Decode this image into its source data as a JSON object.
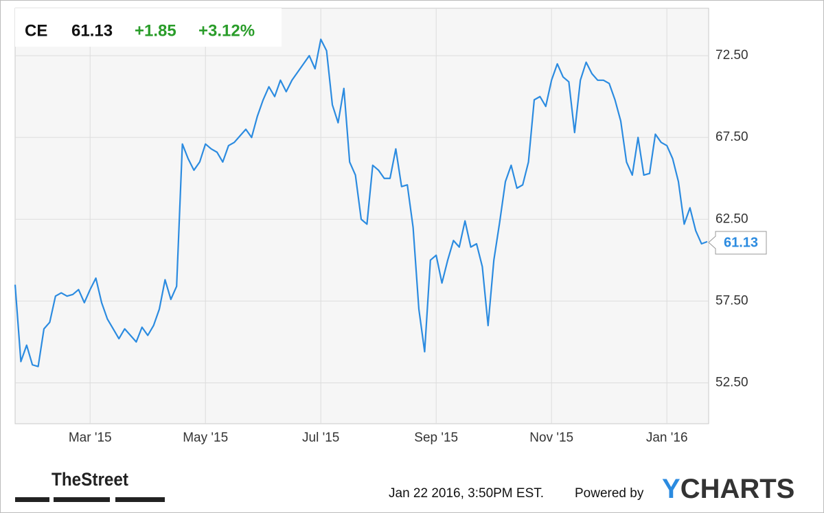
{
  "chart_data": {
    "type": "line",
    "quote": {
      "symbol": "CE",
      "price": "61.13",
      "change": "+1.85",
      "change_percent": "+3.12%"
    },
    "categories": [
      null,
      null,
      null,
      null,
      null,
      null,
      null,
      null,
      null,
      null,
      null,
      null,
      null,
      "Mar '15",
      null,
      null,
      null,
      null,
      null,
      null,
      null,
      null,
      null,
      null,
      null,
      null,
      null,
      null,
      null,
      null,
      null,
      null,
      null,
      "May '15",
      null,
      null,
      null,
      null,
      null,
      null,
      null,
      null,
      null,
      null,
      null,
      null,
      null,
      null,
      null,
      null,
      null,
      null,
      null,
      "Jul '15",
      null,
      null,
      null,
      null,
      null,
      null,
      null,
      null,
      null,
      null,
      null,
      null,
      null,
      null,
      null,
      null,
      null,
      null,
      null,
      "Sep '15",
      null,
      null,
      null,
      null,
      null,
      null,
      null,
      null,
      null,
      null,
      null,
      null,
      null,
      null,
      null,
      null,
      null,
      null,
      null,
      "Nov '15",
      null,
      null,
      null,
      null,
      null,
      null,
      null,
      null,
      null,
      null,
      null,
      null,
      null,
      null,
      null,
      null,
      null,
      null,
      null,
      "Jan '16",
      null,
      null,
      null,
      null,
      null,
      null,
      null
    ],
    "series": [
      {
        "name": "CE",
        "color": "#2b8be0",
        "values": [
          58.5,
          53.8,
          54.8,
          53.6,
          53.5,
          55.8,
          56.2,
          57.8,
          58.0,
          57.8,
          57.9,
          58.2,
          57.4,
          58.2,
          58.9,
          57.4,
          56.4,
          55.8,
          55.2,
          55.8,
          55.4,
          55.0,
          55.9,
          55.4,
          56.0,
          57.0,
          58.8,
          57.6,
          58.4,
          67.1,
          66.2,
          65.5,
          66.0,
          67.1,
          66.8,
          66.6,
          66.0,
          67.0,
          67.2,
          67.6,
          68.0,
          67.5,
          68.8,
          69.8,
          70.6,
          70.0,
          71.0,
          70.3,
          71.0,
          71.5,
          72.0,
          72.5,
          71.7,
          73.5,
          72.8,
          69.5,
          68.4,
          70.5,
          66.0,
          65.2,
          62.5,
          62.2,
          65.8,
          65.5,
          65.0,
          65.0,
          66.8,
          64.5,
          64.6,
          62.0,
          57.0,
          54.4,
          60.0,
          60.3,
          58.6,
          60.0,
          61.2,
          60.8,
          62.4,
          60.8,
          61.0,
          59.6,
          56.0,
          60.0,
          62.3,
          64.8,
          65.8,
          64.4,
          64.6,
          66.0,
          69.8,
          70.0,
          69.4,
          71.0,
          72.0,
          71.2,
          70.9,
          67.8,
          71.0,
          72.1,
          71.4,
          71.0,
          71.0,
          70.8,
          69.8,
          68.5,
          66.0,
          65.2,
          67.5,
          65.2,
          65.3,
          67.7,
          67.2,
          67.0,
          66.2,
          64.8,
          62.2,
          63.2,
          61.8,
          61.0,
          61.13
        ]
      }
    ],
    "ylim": [
      50,
      75.4
    ],
    "yticks": [
      {
        "value": 52.5,
        "label": "52.50"
      },
      {
        "value": 57.5,
        "label": "57.50"
      },
      {
        "value": 62.5,
        "label": "62.50"
      },
      {
        "value": 67.5,
        "label": "67.50"
      },
      {
        "value": 72.5,
        "label": "72.50"
      }
    ],
    "grid": true,
    "footer": {
      "source_logo": "TheStreet",
      "timestamp": "Jan 22 2016, 3:50PM EST.",
      "powered_by": "Powered by",
      "brand": [
        "Y",
        "CHARTS"
      ]
    }
  }
}
